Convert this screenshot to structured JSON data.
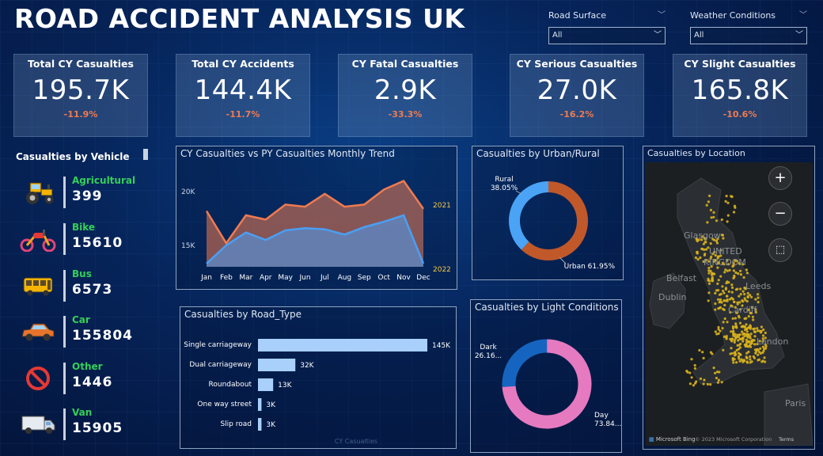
{
  "title": "ROAD ACCIDENT ANALYSIS UK",
  "filters": {
    "road_surface": {
      "label": "Road Surface",
      "value": "All"
    },
    "weather": {
      "label": "Weather Conditions",
      "value": "All"
    }
  },
  "kpis": [
    {
      "label": "Total CY Casualties",
      "value": "195.7K",
      "change": "-11.9%"
    },
    {
      "label": "Total CY Accidents",
      "value": "144.4K",
      "change": "-11.7%"
    },
    {
      "label": "CY Fatal Casualties",
      "value": "2.9K",
      "change": "-33.3%"
    },
    {
      "label": "CY Serious Casualties",
      "value": "27.0K",
      "change": "-16.2%"
    },
    {
      "label": "CY Slight Casualties",
      "value": "165.8K",
      "change": "-10.6%"
    }
  ],
  "vehicles": {
    "title": "Casualties by Vehicle",
    "items": [
      {
        "name": "Agricultural",
        "value": "399",
        "icon": "tractor-icon"
      },
      {
        "name": "Bike",
        "value": "15610",
        "icon": "motorbike-icon"
      },
      {
        "name": "Bus",
        "value": "6573",
        "icon": "bus-icon"
      },
      {
        "name": "Car",
        "value": "155804",
        "icon": "car-icon"
      },
      {
        "name": "Other",
        "value": "1446",
        "icon": "no-entry-icon"
      },
      {
        "name": "Van",
        "value": "15905",
        "icon": "van-icon"
      }
    ]
  },
  "colors": {
    "accent_red": "#f07b50",
    "green": "#34d058",
    "cy_line": "#4a9ff5",
    "py_line": "#f07b50",
    "urban": "#c0582a",
    "rural": "#4aa3f5",
    "day": "#e57ac0",
    "dark": "#1565c0",
    "bar": "#a8d0fb"
  },
  "chart_data": [
    {
      "type": "area",
      "title": "CY Casualties vs PY Casualties Monthly Trend",
      "categories": [
        "Jan",
        "Feb",
        "Mar",
        "Apr",
        "May",
        "Jun",
        "Jul",
        "Aug",
        "Sep",
        "Oct",
        "Nov",
        "Dec"
      ],
      "yticks": [
        "15K",
        "20K"
      ],
      "ylim": [
        13000,
        22000
      ],
      "series": [
        {
          "name": "2021",
          "values": [
            18200,
            15200,
            17800,
            17400,
            18800,
            18600,
            19800,
            18600,
            18800,
            20200,
            21000,
            18400
          ]
        },
        {
          "name": "2022",
          "values": [
            13300,
            15000,
            16200,
            15500,
            16400,
            16600,
            16500,
            16000,
            16700,
            17200,
            17800,
            13300
          ]
        }
      ]
    },
    {
      "type": "pie",
      "title": "Casualties by Urban/Rural",
      "labels": [
        "Rural",
        "Urban"
      ],
      "label_text": [
        "Rural\n38.05%",
        "Urban 61.95%"
      ],
      "values": [
        38.05,
        61.95
      ]
    },
    {
      "type": "bar",
      "title": "Casualties by Road_Type",
      "xlabel": "CY Casualties",
      "categories": [
        "Single carriageway",
        "Dual carriageway",
        "Roundabout",
        "One way street",
        "Slip road"
      ],
      "values": [
        145000,
        32000,
        13000,
        3000,
        3000
      ],
      "value_labels": [
        "145K",
        "32K",
        "13K",
        "3K",
        "3K"
      ]
    },
    {
      "type": "pie",
      "title": "Casualties by Light Conditions",
      "labels": [
        "Dark",
        "Day"
      ],
      "label_text": [
        "Dark\n26.16...",
        "Day\n73.84..."
      ],
      "values": [
        26.16,
        73.84
      ]
    }
  ],
  "map": {
    "title": "Casualties by Location",
    "labels": [
      "UNITED",
      "KINGDOM",
      "Dublin",
      "Leeds",
      "Cardiff",
      "London",
      "Paris",
      "Glasgow",
      "Belfast"
    ],
    "attribution": "Microsoft Bing",
    "copyright": "© 2023 Microsoft Corporation",
    "terms": "Terms",
    "zoom_in": "+",
    "zoom_out": "−"
  }
}
